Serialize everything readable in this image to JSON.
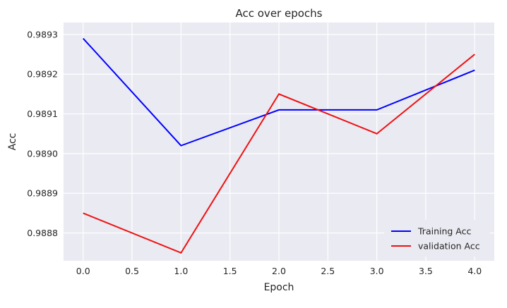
{
  "chart_data": {
    "type": "line",
    "title": "Acc over epochs",
    "xlabel": "Epoch",
    "ylabel": "Acc",
    "x": [
      0,
      1,
      2,
      3,
      4
    ],
    "xlim": [
      -0.2,
      4.2
    ],
    "ylim": [
      0.98873,
      0.98933
    ],
    "xticks": [
      0.0,
      0.5,
      1.0,
      1.5,
      2.0,
      2.5,
      3.0,
      3.5,
      4.0
    ],
    "xtick_labels": [
      "0.0",
      "0.5",
      "1.0",
      "1.5",
      "2.0",
      "2.5",
      "3.0",
      "3.5",
      "4.0"
    ],
    "yticks": [
      0.9888,
      0.9889,
      0.989,
      0.9891,
      0.9892,
      0.9893
    ],
    "ytick_labels": [
      "0.9888",
      "0.9889",
      "0.9890",
      "0.9891",
      "0.9892",
      "0.9893"
    ],
    "grid": true,
    "legend_position": "lower-right",
    "series": [
      {
        "name": "Training Acc",
        "color": "#0000ff",
        "values": [
          0.98929,
          0.98902,
          0.98911,
          0.98911,
          0.98921
        ]
      },
      {
        "name": "validation Acc",
        "color": "#ee1111",
        "values": [
          0.98885,
          0.98875,
          0.98915,
          0.98905,
          0.98925
        ]
      }
    ],
    "colors": {
      "plot_background": "#eaeaf2",
      "grid": "#ffffff",
      "legend_background": "#eaeaf2"
    }
  }
}
